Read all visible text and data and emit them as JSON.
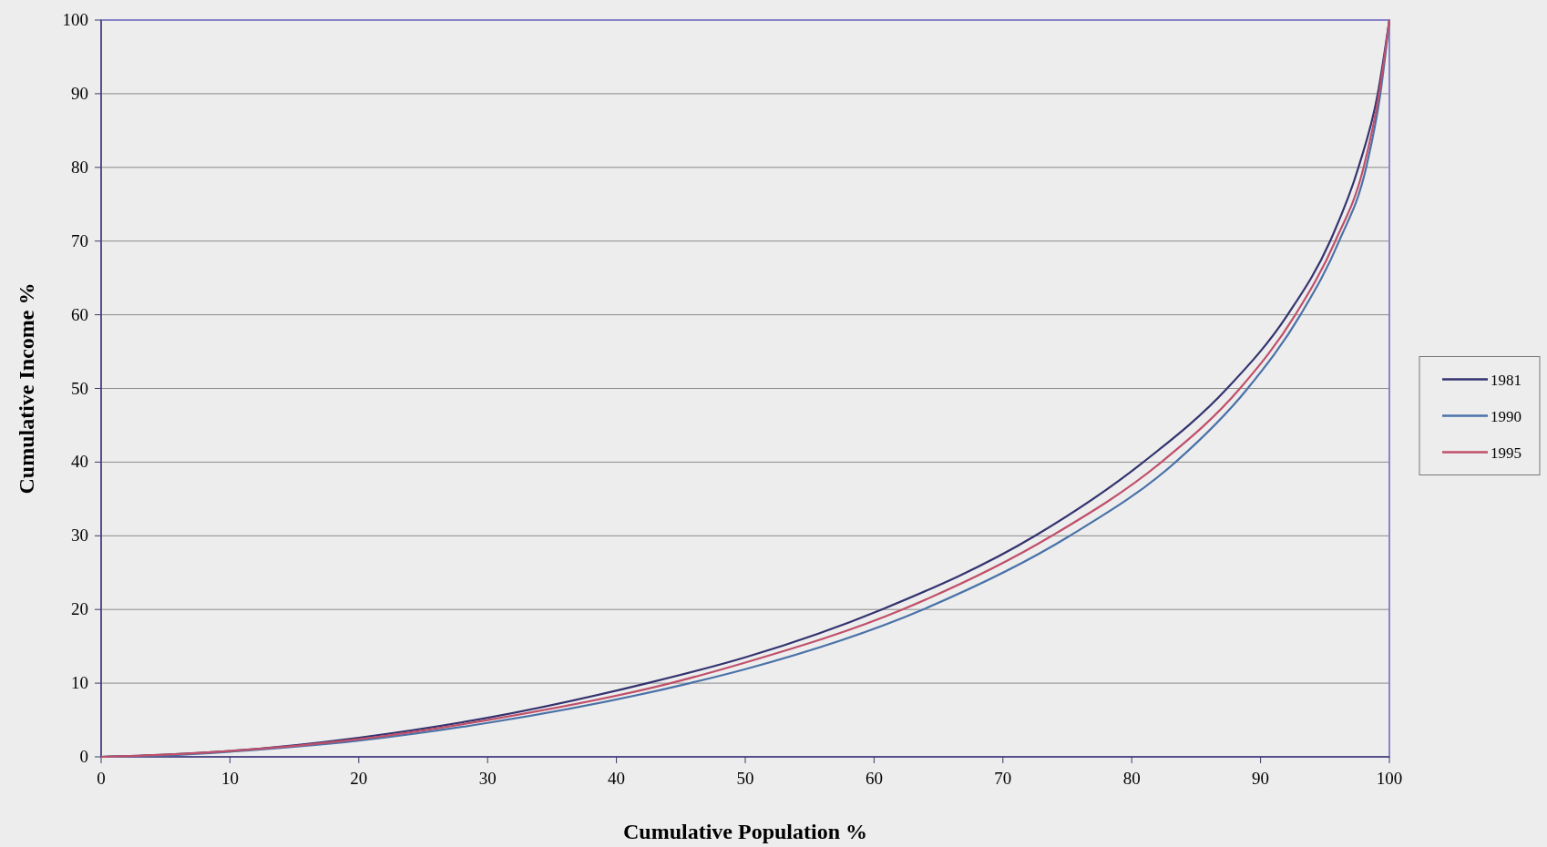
{
  "chart_data": {
    "type": "line",
    "xlabel": "Cumulative Population %",
    "ylabel": "Cumulative Income %",
    "xlim": [
      0,
      100
    ],
    "xticks": [
      0,
      10,
      20,
      30,
      40,
      50,
      60,
      70,
      80,
      90,
      100
    ],
    "ylim": [
      0,
      100
    ],
    "yticks": [
      0,
      10,
      20,
      30,
      40,
      50,
      60,
      70,
      80,
      90,
      100
    ],
    "grid": "y",
    "legend": "right",
    "series": [
      {
        "name": "1981",
        "color": "#333370",
        "x": [
          0,
          5,
          10,
          20,
          30,
          42.4,
          50,
          60.6,
          72.5,
          80.9,
          87.4,
          92.1,
          95.4,
          97.6,
          99.1,
          100
        ],
        "values": [
          0,
          0.3,
          0.8,
          2.6,
          5.3,
          10,
          13.5,
          20,
          30,
          40,
          50,
          60,
          70,
          80,
          90,
          100
        ]
      },
      {
        "name": "1990",
        "color": "#4a72a8",
        "x": [
          0,
          5,
          10,
          20,
          30,
          45.7,
          50,
          63.8,
          75.2,
          83.4,
          89,
          93.1,
          96.1,
          98.2,
          99.3,
          100
        ],
        "values": [
          0,
          0.2,
          0.7,
          2.2,
          4.6,
          10,
          11.9,
          20,
          30,
          40,
          50,
          60,
          70,
          80,
          90,
          100
        ]
      },
      {
        "name": "1995",
        "color": "#c0506a",
        "x": [
          0,
          5,
          10,
          20,
          30,
          44.2,
          50,
          62.2,
          73.8,
          82.3,
          88.4,
          92.7,
          95.8,
          98,
          99.2,
          100
        ],
        "values": [
          0,
          0.3,
          0.8,
          2.4,
          5,
          10,
          12.8,
          20,
          30,
          40,
          50,
          60,
          70,
          80,
          90,
          100
        ]
      }
    ]
  }
}
